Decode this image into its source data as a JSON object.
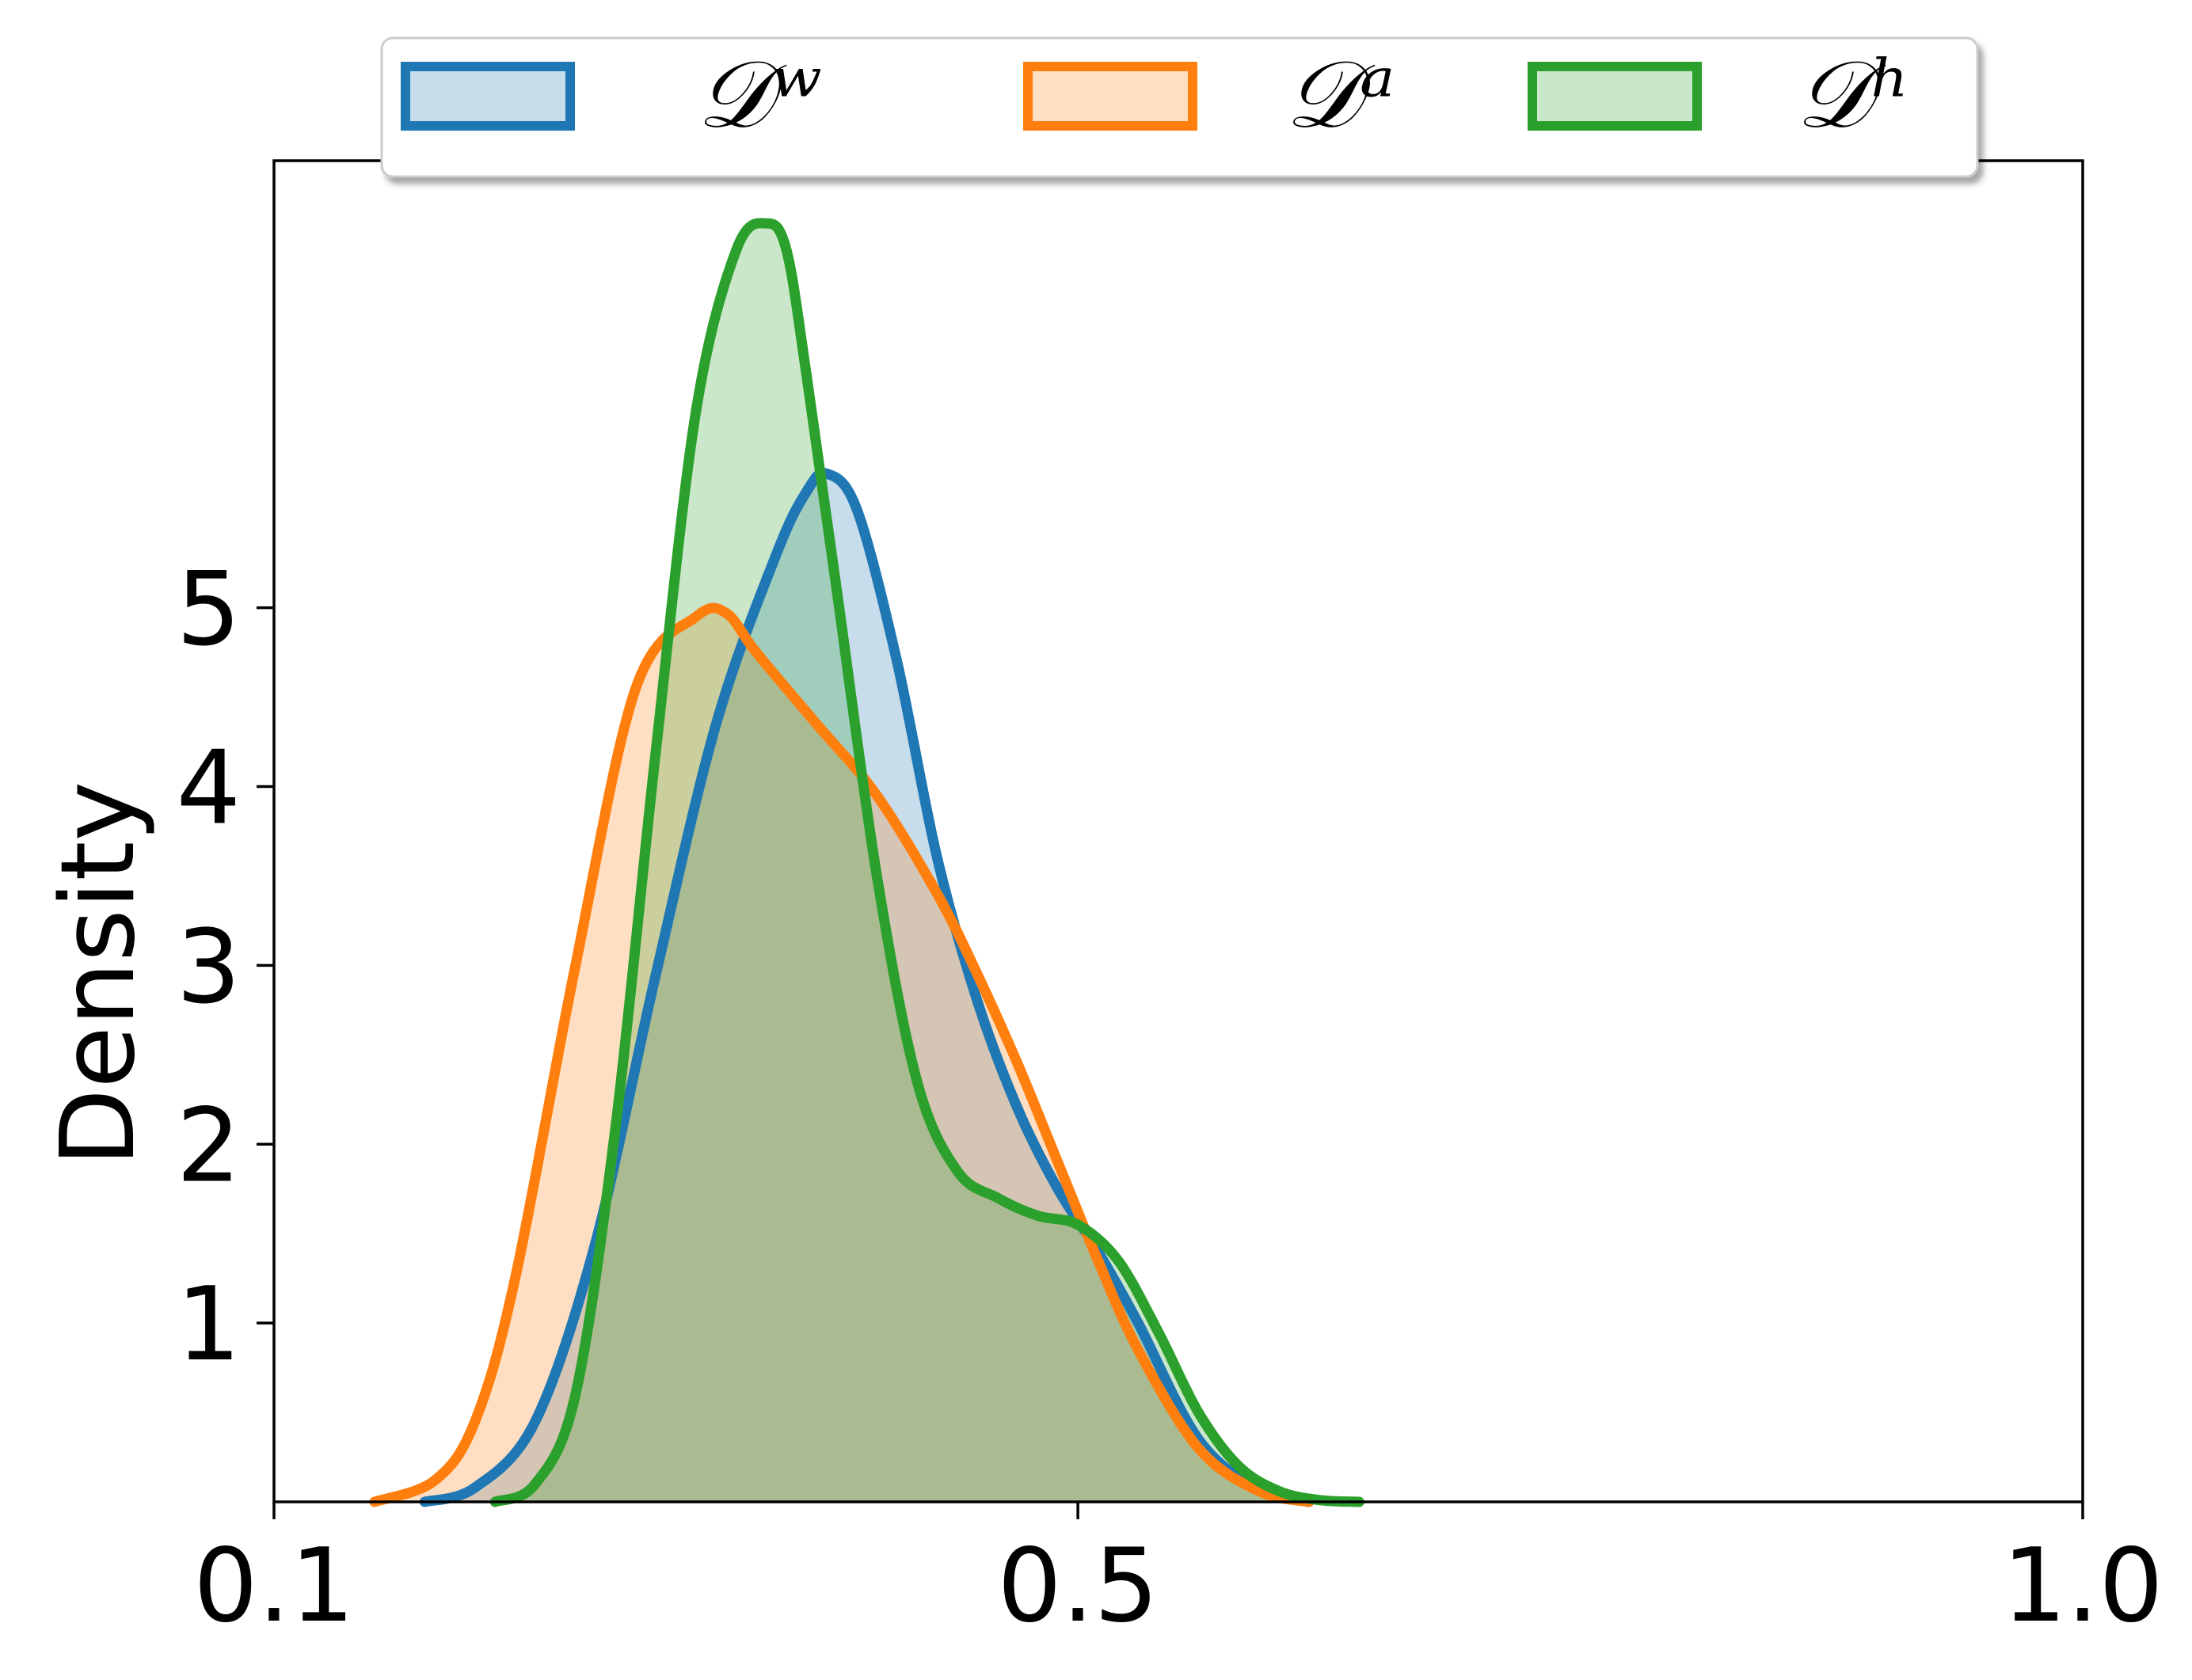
{
  "chart_data": {
    "type": "area",
    "xlabel": "",
    "ylabel": "Density",
    "xlim": [
      0.1,
      1.0
    ],
    "ylim": [
      0,
      7.5
    ],
    "xticks": [
      {
        "value": 0.1,
        "label": "0.1"
      },
      {
        "value": 0.5,
        "label": "0.5"
      },
      {
        "value": 1.0,
        "label": "1.0"
      }
    ],
    "yticks": [
      {
        "value": 1,
        "label": "1"
      },
      {
        "value": 2,
        "label": "2"
      },
      {
        "value": 3,
        "label": "3"
      },
      {
        "value": 4,
        "label": "4"
      },
      {
        "value": 5,
        "label": "5"
      }
    ],
    "grid": false,
    "legend_position": "top-center",
    "series": [
      {
        "name": "𝒟ʷ",
        "color": "#1f77b4",
        "fill_opacity": 0.25,
        "x": [
          0.175,
          0.2,
          0.23,
          0.26,
          0.29,
          0.32,
          0.35,
          0.365,
          0.375,
          0.39,
          0.41,
          0.43,
          0.45,
          0.47,
          0.49,
          0.51,
          0.53,
          0.56,
          0.59,
          0.615
        ],
        "y": [
          0.0,
          0.08,
          0.45,
          1.45,
          2.95,
          4.35,
          5.3,
          5.65,
          5.75,
          5.55,
          4.7,
          3.6,
          2.8,
          2.2,
          1.75,
          1.4,
          1.0,
          0.35,
          0.07,
          0.0
        ]
      },
      {
        "name": "𝒟ᵃ",
        "color": "#ff7f0e",
        "fill_opacity": 0.25,
        "x": [
          0.15,
          0.18,
          0.2,
          0.22,
          0.25,
          0.28,
          0.31,
          0.325,
          0.34,
          0.37,
          0.4,
          0.43,
          0.45,
          0.47,
          0.49,
          0.51,
          0.53,
          0.56,
          0.59,
          0.615
        ],
        "y": [
          0.0,
          0.12,
          0.45,
          1.25,
          3.0,
          4.55,
          4.95,
          4.97,
          4.75,
          4.35,
          3.95,
          3.4,
          2.95,
          2.45,
          1.9,
          1.35,
          0.85,
          0.3,
          0.06,
          0.0
        ]
      },
      {
        "name": "𝒟ʰ",
        "color": "#2ca02c",
        "fill_opacity": 0.25,
        "x": [
          0.21,
          0.23,
          0.25,
          0.27,
          0.29,
          0.31,
          0.33,
          0.345,
          0.355,
          0.365,
          0.38,
          0.4,
          0.42,
          0.44,
          0.46,
          0.48,
          0.5,
          0.52,
          0.54,
          0.56,
          0.58,
          0.6,
          0.62,
          0.64
        ],
        "y": [
          0.0,
          0.1,
          0.6,
          2.1,
          4.2,
          6.1,
          7.0,
          7.15,
          7.0,
          6.3,
          5.1,
          3.5,
          2.35,
          1.85,
          1.7,
          1.6,
          1.55,
          1.35,
          0.95,
          0.5,
          0.2,
          0.06,
          0.01,
          0.0
        ]
      }
    ]
  }
}
